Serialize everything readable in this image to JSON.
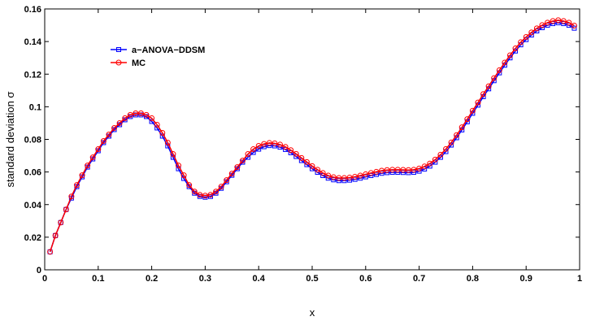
{
  "chart_data": {
    "type": "line",
    "title": "",
    "xlabel": "x",
    "ylabel": "standard deviation σ",
    "xlim": [
      0,
      1
    ],
    "ylim": [
      0,
      0.16
    ],
    "xticks": [
      "0",
      "0.1",
      "0.2",
      "0.3",
      "0.4",
      "0.5",
      "0.6",
      "0.7",
      "0.8",
      "0.9",
      "1"
    ],
    "yticks": [
      "0",
      "0.02",
      "0.04",
      "0.06",
      "0.08",
      "0.1",
      "0.12",
      "0.14",
      "0.16"
    ],
    "grid": false,
    "legend_position": "top-left",
    "x": [
      0.01,
      0.02,
      0.03,
      0.04,
      0.05,
      0.06,
      0.07,
      0.08,
      0.09,
      0.1,
      0.11,
      0.12,
      0.13,
      0.14,
      0.15,
      0.16,
      0.17,
      0.18,
      0.19,
      0.2,
      0.21,
      0.22,
      0.23,
      0.24,
      0.25,
      0.26,
      0.27,
      0.28,
      0.29,
      0.3,
      0.31,
      0.32,
      0.33,
      0.34,
      0.35,
      0.36,
      0.37,
      0.38,
      0.39,
      0.4,
      0.41,
      0.42,
      0.43,
      0.44,
      0.45,
      0.46,
      0.47,
      0.48,
      0.49,
      0.5,
      0.51,
      0.52,
      0.53,
      0.54,
      0.55,
      0.56,
      0.57,
      0.58,
      0.59,
      0.6,
      0.61,
      0.62,
      0.63,
      0.64,
      0.65,
      0.66,
      0.67,
      0.68,
      0.69,
      0.7,
      0.71,
      0.72,
      0.73,
      0.74,
      0.75,
      0.76,
      0.77,
      0.78,
      0.79,
      0.8,
      0.81,
      0.82,
      0.83,
      0.84,
      0.85,
      0.86,
      0.87,
      0.88,
      0.89,
      0.9,
      0.91,
      0.92,
      0.93,
      0.94,
      0.95,
      0.96,
      0.97,
      0.98,
      0.99
    ],
    "series": [
      {
        "name": "a−ANOVA−DDSM",
        "color": "#0000ff",
        "marker": "square",
        "values": [
          0.011,
          0.021,
          0.029,
          0.037,
          0.044,
          0.051,
          0.057,
          0.063,
          0.068,
          0.073,
          0.078,
          0.082,
          0.086,
          0.089,
          0.092,
          0.094,
          0.095,
          0.095,
          0.094,
          0.091,
          0.087,
          0.082,
          0.076,
          0.069,
          0.062,
          0.056,
          0.051,
          0.047,
          0.045,
          0.0445,
          0.045,
          0.047,
          0.05,
          0.054,
          0.058,
          0.062,
          0.066,
          0.069,
          0.072,
          0.074,
          0.0755,
          0.0762,
          0.076,
          0.0752,
          0.0738,
          0.0718,
          0.0695,
          0.067,
          0.0645,
          0.062,
          0.0598,
          0.0578,
          0.0562,
          0.0552,
          0.0547,
          0.0547,
          0.055,
          0.0555,
          0.0562,
          0.057,
          0.0578,
          0.0585,
          0.0592,
          0.0596,
          0.0598,
          0.0598,
          0.0597,
          0.0596,
          0.0598,
          0.0605,
          0.0618,
          0.0636,
          0.066,
          0.069,
          0.0725,
          0.0765,
          0.081,
          0.0858,
          0.0908,
          0.096,
          0.101,
          0.1062,
          0.111,
          0.116,
          0.1208,
          0.1255,
          0.13,
          0.1342,
          0.138,
          0.1412,
          0.144,
          0.1465,
          0.1485,
          0.15,
          0.151,
          0.1515,
          0.151,
          0.15,
          0.1482
        ]
      },
      {
        "name": "MC",
        "color": "#ff0000",
        "marker": "circle",
        "values": [
          0.011,
          0.021,
          0.029,
          0.037,
          0.045,
          0.052,
          0.058,
          0.064,
          0.069,
          0.074,
          0.079,
          0.083,
          0.087,
          0.09,
          0.093,
          0.095,
          0.096,
          0.096,
          0.095,
          0.093,
          0.089,
          0.084,
          0.078,
          0.071,
          0.064,
          0.058,
          0.052,
          0.048,
          0.046,
          0.0455,
          0.046,
          0.048,
          0.051,
          0.055,
          0.059,
          0.063,
          0.067,
          0.071,
          0.074,
          0.076,
          0.0772,
          0.0778,
          0.0776,
          0.0768,
          0.0754,
          0.0734,
          0.0711,
          0.0686,
          0.0661,
          0.0636,
          0.0614,
          0.0594,
          0.0578,
          0.0568,
          0.0563,
          0.0563,
          0.0566,
          0.0571,
          0.0578,
          0.0586,
          0.0594,
          0.0601,
          0.0608,
          0.0612,
          0.0614,
          0.0614,
          0.0613,
          0.0612,
          0.0614,
          0.0621,
          0.0634,
          0.0652,
          0.0676,
          0.0706,
          0.0741,
          0.0781,
          0.0826,
          0.0874,
          0.0924,
          0.0976,
          0.1026,
          0.1078,
          0.1126,
          0.1176,
          0.1224,
          0.1271,
          0.1316,
          0.1358,
          0.1396,
          0.1428,
          0.1456,
          0.1481,
          0.1501,
          0.1516,
          0.1526,
          0.1531,
          0.1526,
          0.1516,
          0.1498
        ]
      }
    ]
  }
}
